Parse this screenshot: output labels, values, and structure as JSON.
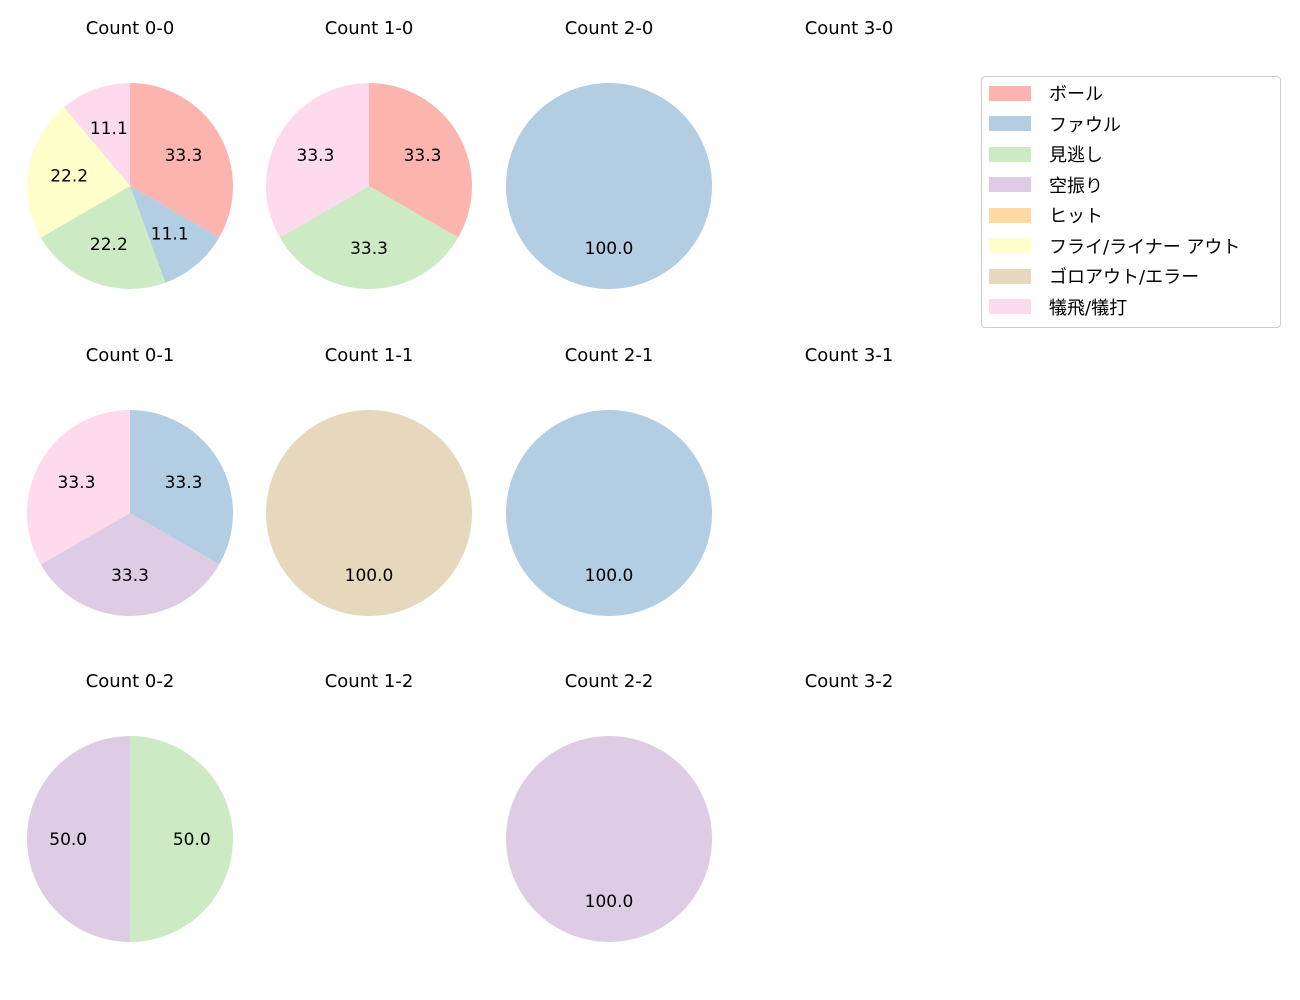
{
  "chart_data": {
    "type": "pie",
    "legend": {
      "position": "upper right",
      "entries": [
        {
          "label": "ボール",
          "color": "#fbb4ae"
        },
        {
          "label": "ファウル",
          "color": "#b3cde3"
        },
        {
          "label": "見逃し",
          "color": "#ccebc5"
        },
        {
          "label": "空振り",
          "color": "#decbe4"
        },
        {
          "label": "ヒット",
          "color": "#fed9a6"
        },
        {
          "label": "フライ/ライナー アウト",
          "color": "#ffffcc"
        },
        {
          "label": "ゴロアウト/エラー",
          "color": "#e5d8bd"
        },
        {
          "label": "犠飛/犠打",
          "color": "#fddaec"
        }
      ]
    },
    "charts": [
      {
        "title": "Count 0-0",
        "row": 0,
        "col": 0,
        "slices": [
          {
            "label": "ボール",
            "value": 33.3
          },
          {
            "label": "ファウル",
            "value": 11.1
          },
          {
            "label": "見逃し",
            "value": 22.2
          },
          {
            "label": "フライ/ライナー アウト",
            "value": 22.2
          },
          {
            "label": "犠飛/犠打",
            "value": 11.1
          }
        ]
      },
      {
        "title": "Count 1-0",
        "row": 0,
        "col": 1,
        "slices": [
          {
            "label": "ボール",
            "value": 33.3
          },
          {
            "label": "見逃し",
            "value": 33.3
          },
          {
            "label": "犠飛/犠打",
            "value": 33.3
          }
        ]
      },
      {
        "title": "Count 2-0",
        "row": 0,
        "col": 2,
        "slices": [
          {
            "label": "ファウル",
            "value": 100.0
          }
        ]
      },
      {
        "title": "Count 3-0",
        "row": 0,
        "col": 3,
        "slices": []
      },
      {
        "title": "Count 0-1",
        "row": 1,
        "col": 0,
        "slices": [
          {
            "label": "ファウル",
            "value": 33.3
          },
          {
            "label": "空振り",
            "value": 33.3
          },
          {
            "label": "犠飛/犠打",
            "value": 33.3
          }
        ]
      },
      {
        "title": "Count 1-1",
        "row": 1,
        "col": 1,
        "slices": [
          {
            "label": "ゴロアウト/エラー",
            "value": 100.0
          }
        ]
      },
      {
        "title": "Count 2-1",
        "row": 1,
        "col": 2,
        "slices": [
          {
            "label": "ファウル",
            "value": 100.0
          }
        ]
      },
      {
        "title": "Count 3-1",
        "row": 1,
        "col": 3,
        "slices": []
      },
      {
        "title": "Count 0-2",
        "row": 2,
        "col": 0,
        "slices": [
          {
            "label": "見逃し",
            "value": 50.0
          },
          {
            "label": "空振り",
            "value": 50.0
          }
        ]
      },
      {
        "title": "Count 1-2",
        "row": 2,
        "col": 1,
        "slices": []
      },
      {
        "title": "Count 2-2",
        "row": 2,
        "col": 2,
        "slices": [
          {
            "label": "空振り",
            "value": 100.0
          }
        ]
      },
      {
        "title": "Count 3-2",
        "row": 2,
        "col": 3,
        "slices": []
      }
    ]
  }
}
